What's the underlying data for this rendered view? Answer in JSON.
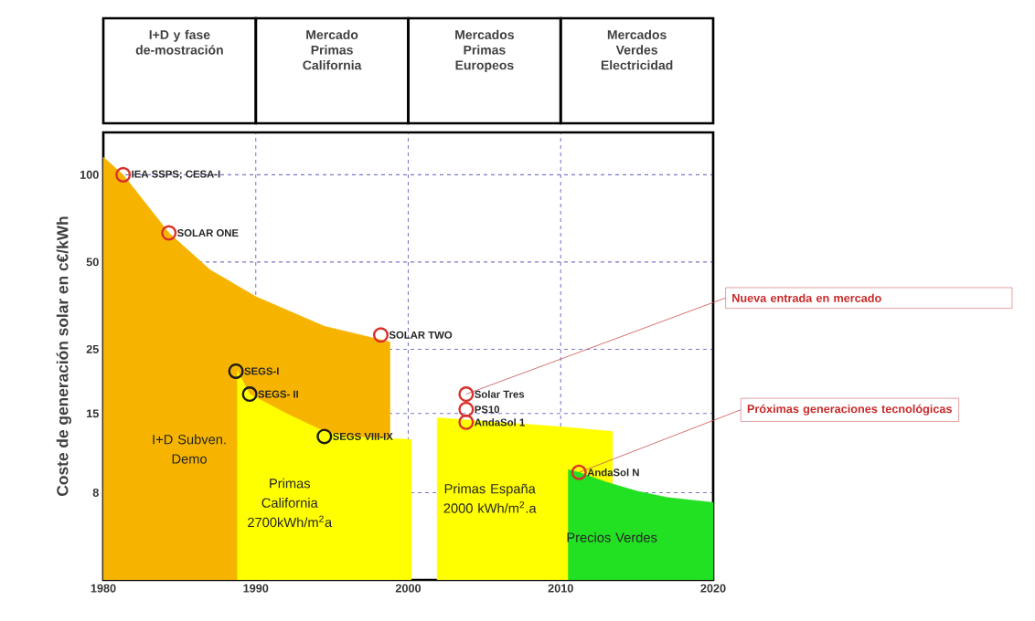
{
  "chart_data": {
    "type": "area",
    "ylabel": "Coste de generación solar  en c€/kWh",
    "xlim": [
      1980,
      2020
    ],
    "xticks": [
      1980,
      1990,
      2000,
      2010,
      2020
    ],
    "ylim": [
      4,
      140
    ],
    "yticks": [
      8,
      15,
      25,
      50,
      100
    ],
    "log": true,
    "grid": true,
    "series": [
      {
        "name": "I+D Subven. Demo",
        "color": "#f6b400",
        "x": [
          1980,
          1981.3,
          1984.3,
          1987,
          1990,
          1994.5,
          1998.8
        ],
        "values": [
          115,
          100,
          63,
          47,
          38,
          30,
          26.5
        ]
      },
      {
        "name": "Primas California 2700kWh/m$^{2}$a",
        "color": "#ffff00",
        "x": [
          1988.8,
          1989.6,
          1992,
          1994.5,
          1996,
          2000.2
        ],
        "values": [
          21,
          17.5,
          15,
          13,
          12.5,
          12.2
        ]
      },
      {
        "name": "Primas España 2000 kWh/m$^{2}$.a",
        "color": "#ffff00",
        "x": [
          2001.9,
          2010,
          2013.4
        ],
        "values": [
          14.5,
          13.5,
          13
        ]
      },
      {
        "name": "Precios Verdes",
        "color": "#22e022",
        "x": [
          2010.5,
          2011.2,
          2013,
          2015,
          2017,
          2020
        ],
        "values": [
          9.6,
          9.4,
          8.7,
          8.1,
          7.7,
          7.4
        ]
      },
      {
        "type": "scatter",
        "marker": "circle",
        "name": "IEA SSPS;  CESA-I",
        "color": "#d9302c",
        "x": [
          1981.3
        ],
        "values": [
          100
        ]
      },
      {
        "type": "scatter",
        "marker": "circle",
        "name": "SOLAR ONE",
        "color": "#d9302c",
        "x": [
          1984.3
        ],
        "values": [
          63
        ]
      },
      {
        "type": "scatter",
        "marker": "circle",
        "name": "SOLAR TWO",
        "color": "#d9302c",
        "x": [
          1998.2
        ],
        "values": [
          28
        ]
      },
      {
        "type": "scatter",
        "marker": "circle",
        "name": "SEGS-I",
        "color": "#1a1a1a",
        "x": [
          1988.7
        ],
        "values": [
          21
        ]
      },
      {
        "type": "scatter",
        "marker": "circle",
        "name": "SEGS- II",
        "color": "#1a1a1a",
        "x": [
          1989.6
        ],
        "values": [
          17.5
        ]
      },
      {
        "type": "scatter",
        "marker": "circle",
        "name": "SEGS VIII-IX",
        "color": "#1a1a1a",
        "x": [
          1994.5
        ],
        "values": [
          12.5
        ]
      },
      {
        "type": "scatter",
        "marker": "circle",
        "name": "Solar Tres",
        "color": "#d9302c",
        "x": [
          2003.8
        ],
        "values": [
          17.5
        ]
      },
      {
        "type": "scatter",
        "marker": "circle",
        "name": "PS10",
        "color": "#d9302c",
        "x": [
          2003.8
        ],
        "values": [
          15.5
        ]
      },
      {
        "type": "scatter",
        "marker": "circle",
        "name": "AndaSol 1",
        "color": "#d9302c",
        "x": [
          2003.8
        ],
        "values": [
          14
        ]
      },
      {
        "type": "scatter",
        "marker": "circle",
        "name": "AndaSol N",
        "color": "#d9302c",
        "x": [
          2011.2
        ],
        "values": [
          9.4
        ]
      }
    ],
    "annotations": [
      "I+D y fase de-mostración",
      "Mercado Primas California",
      "Mercados Primas Europeos",
      "Mercados Verdes Electricidad",
      {
        "text": "Nueva entrada en mercado",
        "x": 2003.8,
        "y": 17.5
      },
      {
        "text": "Próximas generaciones tecnológicas",
        "x": 2011.2,
        "y": 9.4
      }
    ]
  }
}
